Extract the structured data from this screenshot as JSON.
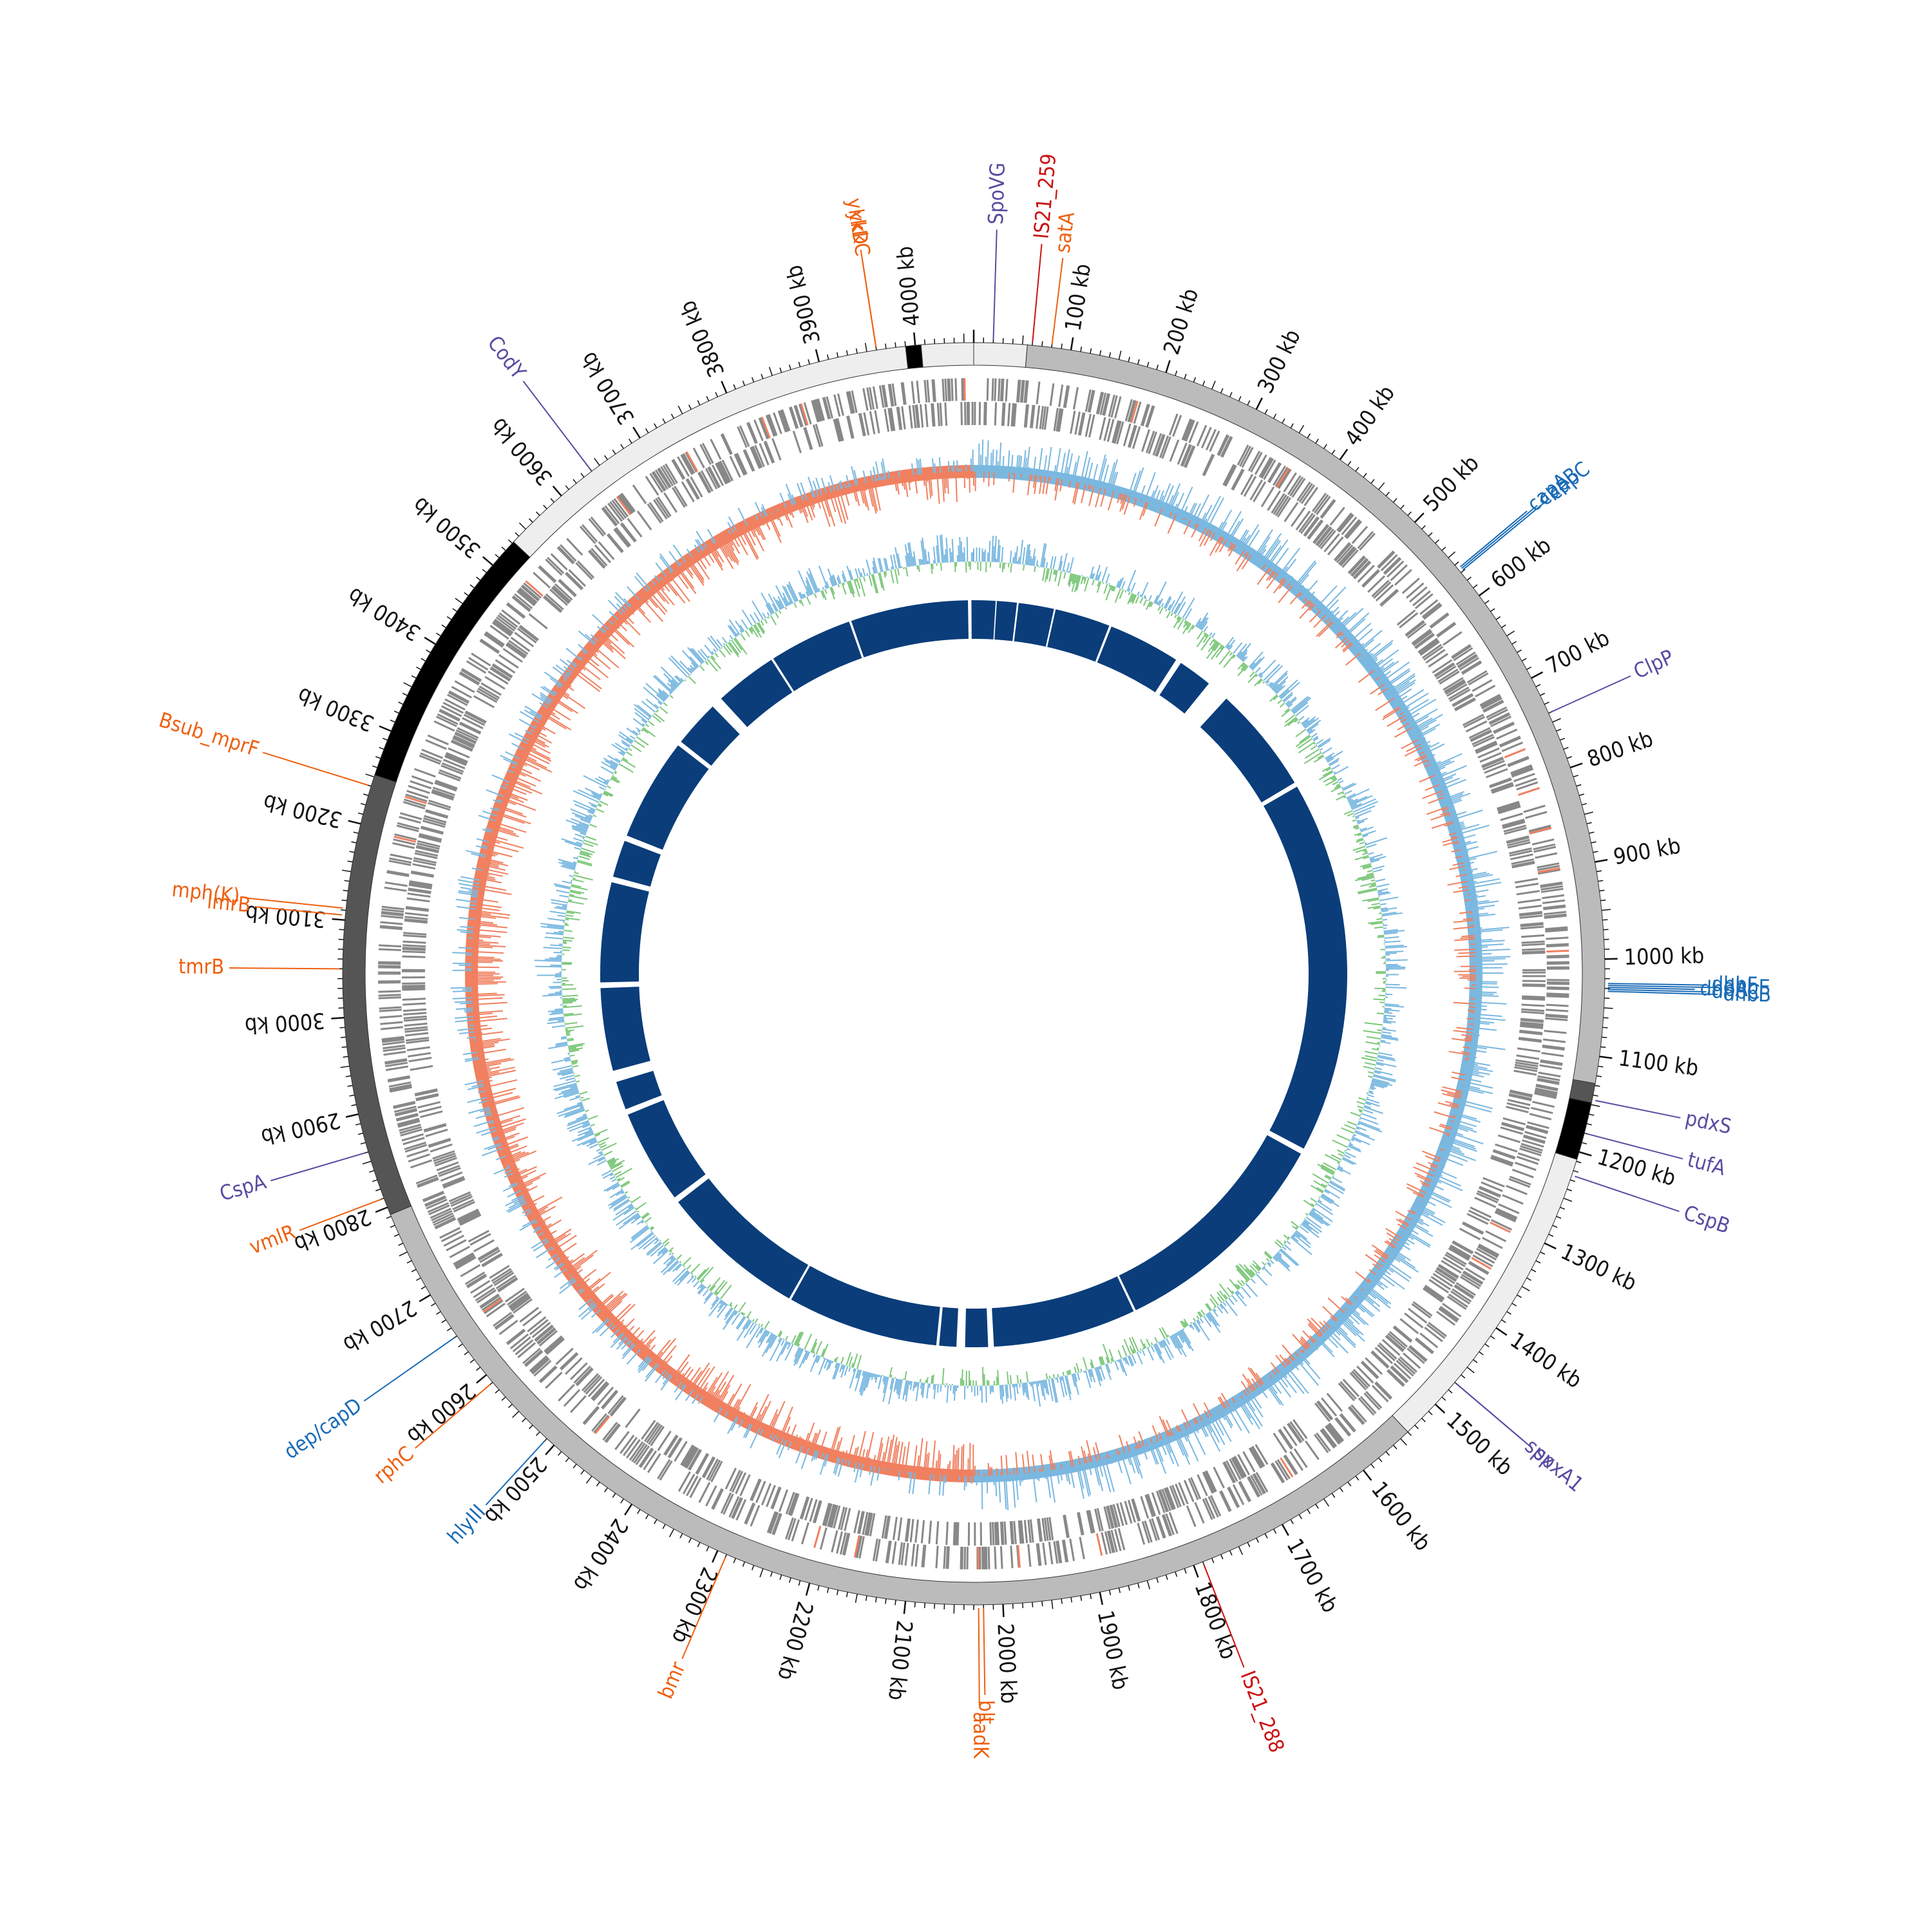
{
  "genome": {
    "length_kb": 4060,
    "tick_labels": [
      {
        "pos": 100,
        "label": "100 kb"
      },
      {
        "pos": 200,
        "label": "200 kb"
      },
      {
        "pos": 300,
        "label": "300 kb"
      },
      {
        "pos": 400,
        "label": "400 kb"
      },
      {
        "pos": 500,
        "label": "500 kb"
      },
      {
        "pos": 600,
        "label": "600 kb"
      },
      {
        "pos": 700,
        "label": "700 kb"
      },
      {
        "pos": 800,
        "label": "800 kb"
      },
      {
        "pos": 900,
        "label": "900 kb"
      },
      {
        "pos": 1000,
        "label": "1000 kb"
      },
      {
        "pos": 1100,
        "label": "1100 kb"
      },
      {
        "pos": 1200,
        "label": "1200 kb"
      },
      {
        "pos": 1300,
        "label": "1300 kb"
      },
      {
        "pos": 1400,
        "label": "1400 kb"
      },
      {
        "pos": 1500,
        "label": "1500 kb"
      },
      {
        "pos": 1600,
        "label": "1600 kb"
      },
      {
        "pos": 1700,
        "label": "1700 kb"
      },
      {
        "pos": 1800,
        "label": "1800 kb"
      },
      {
        "pos": 1900,
        "label": "1900 kb"
      },
      {
        "pos": 2000,
        "label": "2000 kb"
      },
      {
        "pos": 2100,
        "label": "2100 kb"
      },
      {
        "pos": 2200,
        "label": "2200 kb"
      },
      {
        "pos": 2300,
        "label": "2300 kb"
      },
      {
        "pos": 2400,
        "label": "2400 kb"
      },
      {
        "pos": 2500,
        "label": "2500 kb"
      },
      {
        "pos": 2600,
        "label": "2600 kb"
      },
      {
        "pos": 2700,
        "label": "2700 kb"
      },
      {
        "pos": 2800,
        "label": "2800 kb"
      },
      {
        "pos": 2900,
        "label": "2900 kb"
      },
      {
        "pos": 3000,
        "label": "3000 kb"
      },
      {
        "pos": 3100,
        "label": "3100 kb"
      },
      {
        "pos": 3200,
        "label": "3200 kb"
      },
      {
        "pos": 3300,
        "label": "3300 kb"
      },
      {
        "pos": 3400,
        "label": "3400 kb"
      },
      {
        "pos": 3500,
        "label": "3500 kb"
      },
      {
        "pos": 3600,
        "label": "3600 kb"
      },
      {
        "pos": 3700,
        "label": "3700 kb"
      },
      {
        "pos": 3800,
        "label": "3800 kb"
      },
      {
        "pos": 3900,
        "label": "3900 kb"
      },
      {
        "pos": 4000,
        "label": "4000 kb"
      }
    ]
  },
  "colors": {
    "light_region": "#eeeeee",
    "mid_region": "#bbbbbb",
    "dark_region": "#555555",
    "black_region": "#000000",
    "gene_marks": "#888888",
    "gc_positive": "#7ab8e0",
    "gc_negative": "#f08060",
    "skew_green": "#7cc77a",
    "blast_ring": "#0a3d7a",
    "label_orange": "#ee6010",
    "label_blue": "#1a6bb5",
    "label_purple": "#5a4aa0",
    "label_red": "#cc1111"
  },
  "outer_ring_segments": [
    {
      "start": 0,
      "end": 55,
      "shade": "light_region"
    },
    {
      "start": 55,
      "end": 1128,
      "shade": "mid_region"
    },
    {
      "start": 1128,
      "end": 1148,
      "shade": "dark_region"
    },
    {
      "start": 1148,
      "end": 1208,
      "shade": "black_region"
    },
    {
      "start": 1208,
      "end": 1540,
      "shade": "light_region"
    },
    {
      "start": 1540,
      "end": 2792,
      "shade": "mid_region"
    },
    {
      "start": 2792,
      "end": 3252,
      "shade": "dark_region"
    },
    {
      "start": 3252,
      "end": 3532,
      "shade": "black_region"
    },
    {
      "start": 3532,
      "end": 3990,
      "shade": "light_region"
    },
    {
      "start": 3990,
      "end": 4006,
      "shade": "black_region"
    },
    {
      "start": 4006,
      "end": 4060,
      "shade": "light_region"
    }
  ],
  "blast_gaps": [
    {
      "start": 38,
      "end": 40
    },
    {
      "start": 75,
      "end": 78
    },
    {
      "start": 140,
      "end": 143
    },
    {
      "start": 240,
      "end": 244
    },
    {
      "start": 370,
      "end": 380
    },
    {
      "start": 440,
      "end": 480
    },
    {
      "start": 668,
      "end": 676
    },
    {
      "start": 1330,
      "end": 1340
    },
    {
      "start": 1740,
      "end": 1744
    },
    {
      "start": 1995,
      "end": 2005
    },
    {
      "start": 2045,
      "end": 2060
    },
    {
      "start": 2090,
      "end": 2095
    },
    {
      "start": 2360,
      "end": 2364
    },
    {
      "start": 2620,
      "end": 2630
    },
    {
      "start": 2795,
      "end": 2805
    },
    {
      "start": 2855,
      "end": 2875
    },
    {
      "start": 3020,
      "end": 3030
    },
    {
      "start": 3205,
      "end": 3215
    },
    {
      "start": 3280,
      "end": 3290
    },
    {
      "start": 3470,
      "end": 3478
    },
    {
      "start": 3560,
      "end": 3580
    },
    {
      "start": 3690,
      "end": 3694
    },
    {
      "start": 3840,
      "end": 3844
    },
    {
      "start": 4050,
      "end": 4056
    }
  ],
  "annotations": [
    {
      "name": "satA",
      "pos": 80,
      "color": "label_orange",
      "side": "right",
      "group": 0
    },
    {
      "name": "IS21_259",
      "pos": 60,
      "color": "label_red",
      "side": "right",
      "group": 0
    },
    {
      "name": "SpoVG",
      "pos": 20,
      "color": "label_purple",
      "side": "right",
      "group": 0
    },
    {
      "name": "ykkC",
      "pos": 3960,
      "color": "label_orange",
      "side": "left",
      "group": 0
    },
    {
      "name": "ykkD",
      "pos": 3960,
      "color": "label_orange",
      "side": "left",
      "group": 0
    },
    {
      "name": "CodY",
      "pos": 3640,
      "color": "label_purple",
      "side": "left",
      "group": 0
    },
    {
      "name": "capA",
      "pos": 565,
      "color": "label_blue",
      "side": "right",
      "group": 1
    },
    {
      "name": "capB",
      "pos": 567,
      "color": "label_blue",
      "side": "right",
      "group": 1
    },
    {
      "name": "capC",
      "pos": 569,
      "color": "label_blue",
      "side": "right",
      "group": 1
    },
    {
      "name": "ClpP",
      "pos": 740,
      "color": "label_purple",
      "side": "right",
      "group": 0
    },
    {
      "name": "dhbF",
      "pos": 1025,
      "color": "label_blue",
      "side": "right",
      "group": 2
    },
    {
      "name": "dhbE",
      "pos": 1027,
      "color": "label_blue",
      "side": "right",
      "group": 2
    },
    {
      "name": "dhbA",
      "pos": 1029,
      "color": "label_blue",
      "side": "right",
      "group": 2
    },
    {
      "name": "dhbC",
      "pos": 1031,
      "color": "label_blue",
      "side": "right",
      "group": 2
    },
    {
      "name": "dhbB",
      "pos": 1033,
      "color": "label_blue",
      "side": "right",
      "group": 2
    },
    {
      "name": "pdxS",
      "pos": 1145,
      "color": "label_purple",
      "side": "right",
      "group": 0
    },
    {
      "name": "tufA",
      "pos": 1180,
      "color": "label_purple",
      "side": "right",
      "group": 0
    },
    {
      "name": "CspB",
      "pos": 1225,
      "color": "label_purple",
      "side": "right",
      "group": 0
    },
    {
      "name": "spx",
      "pos": 1470,
      "color": "label_purple",
      "side": "right",
      "group": 0
    },
    {
      "name": "spxA1",
      "pos": 1470,
      "color": "label_purple",
      "side": "right",
      "group": 0
    },
    {
      "name": "IS21_288",
      "pos": 1790,
      "color": "label_red",
      "side": "bottom",
      "group": 0
    },
    {
      "name": "blt",
      "pos": 2020,
      "color": "label_orange",
      "side": "bottom",
      "group": 0
    },
    {
      "name": "aadK",
      "pos": 2025,
      "color": "label_orange",
      "side": "bottom",
      "group": 0
    },
    {
      "name": "bmr",
      "pos": 2290,
      "color": "label_orange",
      "side": "bottom",
      "group": 0
    },
    {
      "name": "hlyIII",
      "pos": 2510,
      "color": "label_blue",
      "side": "left",
      "group": 0
    },
    {
      "name": "rphC",
      "pos": 2590,
      "color": "label_orange",
      "side": "left",
      "group": 0
    },
    {
      "name": "dep/capD",
      "pos": 2650,
      "color": "label_blue",
      "side": "left",
      "group": 0
    },
    {
      "name": "vmlR",
      "pos": 2810,
      "color": "label_orange",
      "side": "left",
      "group": 0
    },
    {
      "name": "CspA",
      "pos": 2860,
      "color": "label_purple",
      "side": "left",
      "group": 0
    },
    {
      "name": "tmrB",
      "pos": 3050,
      "color": "label_orange",
      "side": "left",
      "group": 0
    },
    {
      "name": "lmrB",
      "pos": 3105,
      "color": "label_orange",
      "side": "left",
      "group": 0
    },
    {
      "name": "mph(K)",
      "pos": 3112,
      "color": "label_orange",
      "side": "left",
      "group": 0
    },
    {
      "name": "Bsub_mprF",
      "pos": 3240,
      "color": "label_orange",
      "side": "left",
      "group": 0
    }
  ]
}
